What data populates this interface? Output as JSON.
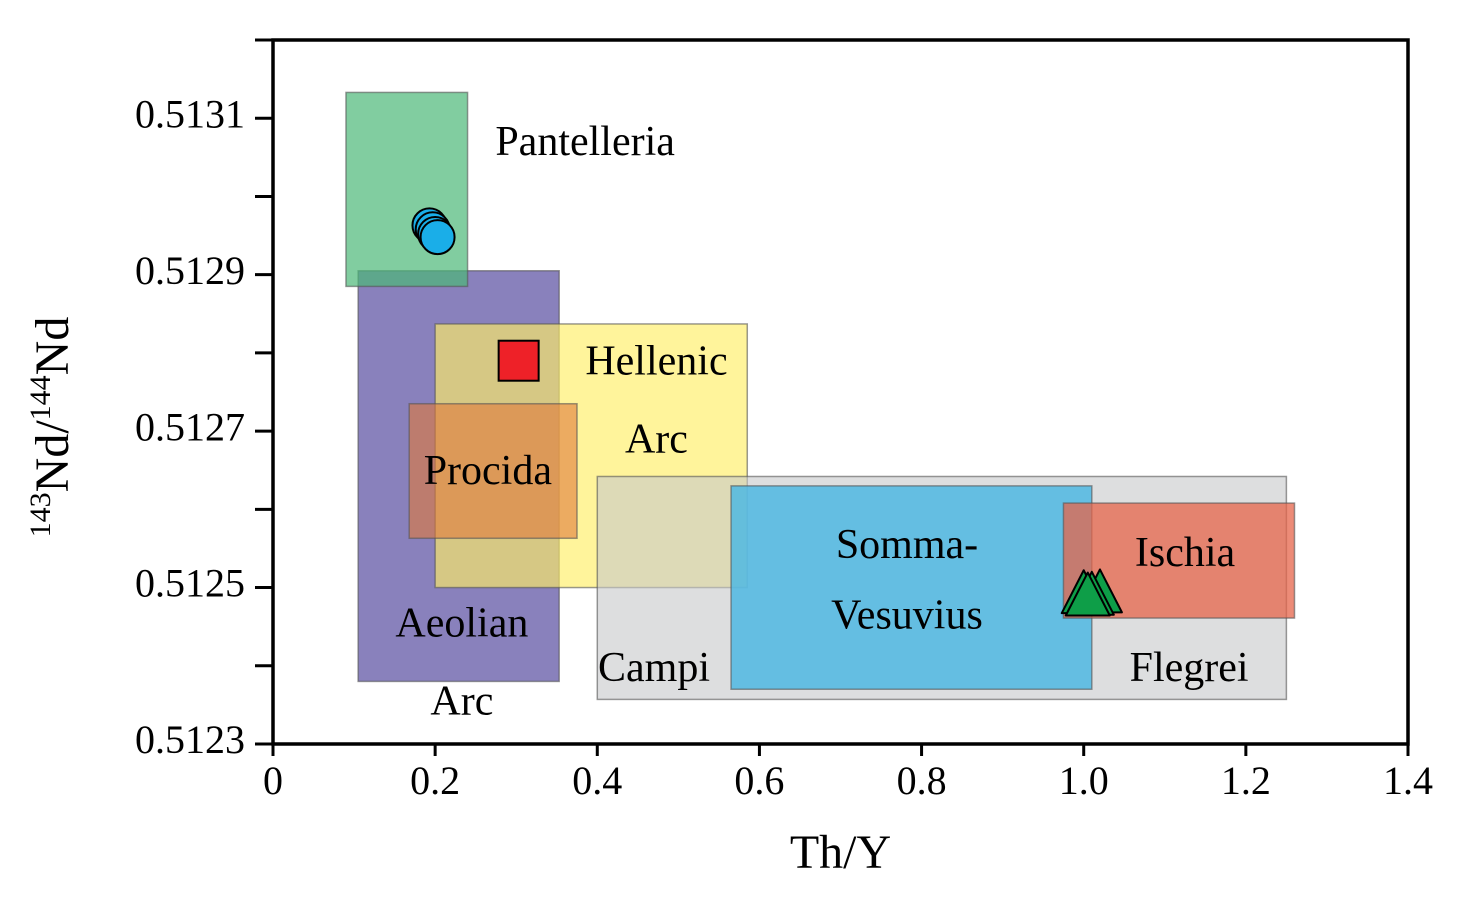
{
  "chart_data": {
    "type": "scatter",
    "xlabel": "Th/Y",
    "ylabel": {
      "sup1": "143",
      "part1": "Nd/",
      "sup2": "144",
      "part2": "Nd"
    },
    "xlim": [
      0,
      1.4
    ],
    "ylim": [
      0.5123,
      0.5132
    ],
    "x_ticks": [
      {
        "value": 0,
        "label": "0"
      },
      {
        "value": 0.2,
        "label": "0.2"
      },
      {
        "value": 0.4,
        "label": "0.4"
      },
      {
        "value": 0.6,
        "label": "0.6"
      },
      {
        "value": 0.8,
        "label": "0.8"
      },
      {
        "value": 1.0,
        "label": "1.0"
      },
      {
        "value": 1.2,
        "label": "1.2"
      },
      {
        "value": 1.4,
        "label": "1.4"
      }
    ],
    "y_ticks": [
      {
        "value": 0.5123,
        "label": "0.5123"
      },
      {
        "value": 0.5125,
        "label": "0.5125"
      },
      {
        "value": 0.5127,
        "label": "0.5127"
      },
      {
        "value": 0.5129,
        "label": "0.5129"
      },
      {
        "value": 0.5131,
        "label": "0.5131"
      }
    ],
    "y_minor_ticks": [
      0.5124,
      0.5126,
      0.5128,
      0.513,
      0.5132
    ],
    "grid": false,
    "regions": [
      {
        "key": "aeolian-arc",
        "x": [
          0.105,
          0.353
        ],
        "y": [
          0.51238,
          0.512905
        ],
        "color": "#574CA0",
        "opacity": 0.7,
        "label_lines": [
          {
            "text": "Aeolian",
            "x": 0.233,
            "y": 0.51245
          },
          {
            "text": "Arc",
            "x": 0.233,
            "y": 0.51235
          }
        ]
      },
      {
        "key": "pantelleria",
        "x": [
          0.09,
          0.24
        ],
        "y": [
          0.512885,
          0.513133
        ],
        "color": "#4CB877",
        "opacity": 0.7,
        "label_lines": [
          {
            "text": "Pantelleria",
            "x": 0.385,
            "y": 0.513065
          }
        ]
      },
      {
        "key": "hellenic-arc",
        "x": [
          0.2,
          0.585
        ],
        "y": [
          0.5125,
          0.512837
        ],
        "color": "#FFEE66",
        "opacity": 0.65,
        "label_lines": [
          {
            "text": "Hellenic",
            "x": 0.473,
            "y": 0.512785
          },
          {
            "text": "Arc",
            "x": 0.473,
            "y": 0.512685
          }
        ]
      },
      {
        "key": "procida",
        "x": [
          0.168,
          0.375
        ],
        "y": [
          0.512563,
          0.512735
        ],
        "color": "#E07A3A",
        "opacity": 0.6,
        "label_lines": [
          {
            "text": "Procida",
            "x": 0.265,
            "y": 0.512645
          }
        ]
      },
      {
        "key": "campi-flegrei",
        "x": [
          0.4,
          1.25
        ],
        "y": [
          0.512357,
          0.512642
        ],
        "color": "#C6C8CA",
        "opacity": 0.6,
        "label_lines": [
          {
            "text": "Campi",
            "x": 0.47,
            "y": 0.512393
          },
          {
            "text": "Flegrei",
            "x": 1.13,
            "y": 0.512393
          }
        ]
      },
      {
        "key": "somma-vesuvius",
        "x": [
          0.565,
          1.01
        ],
        "y": [
          0.51237,
          0.51263
        ],
        "color": "#4FB8E3",
        "opacity": 0.85,
        "label_lines": [
          {
            "text": "Somma-",
            "x": 0.782,
            "y": 0.51255
          },
          {
            "text": "Vesuvius",
            "x": 0.782,
            "y": 0.51246
          }
        ]
      },
      {
        "key": "ischia",
        "x": [
          0.975,
          1.26
        ],
        "y": [
          0.512461,
          0.512608
        ],
        "color": "#E5644A",
        "opacity": 0.75,
        "label_lines": [
          {
            "text": "Ischia",
            "x": 1.125,
            "y": 0.51254
          }
        ]
      }
    ],
    "series": [
      {
        "key": "pantelleria-samples",
        "marker": "circle",
        "color": "#1AAEE8",
        "points": [
          [
            0.193,
            0.512963
          ],
          [
            0.197,
            0.512958
          ],
          [
            0.2,
            0.512952
          ],
          [
            0.203,
            0.512948
          ]
        ]
      },
      {
        "key": "hellenic-sample",
        "marker": "square",
        "color": "#EE2128",
        "points": [
          [
            0.303,
            0.51279
          ]
        ]
      },
      {
        "key": "ischia-samples",
        "marker": "triangle",
        "color": "#0E9E48",
        "points": [
          [
            1.02,
            0.512495
          ],
          [
            1.0,
            0.512494
          ],
          [
            1.01,
            0.512492
          ],
          [
            1.005,
            0.512491
          ]
        ]
      }
    ]
  }
}
